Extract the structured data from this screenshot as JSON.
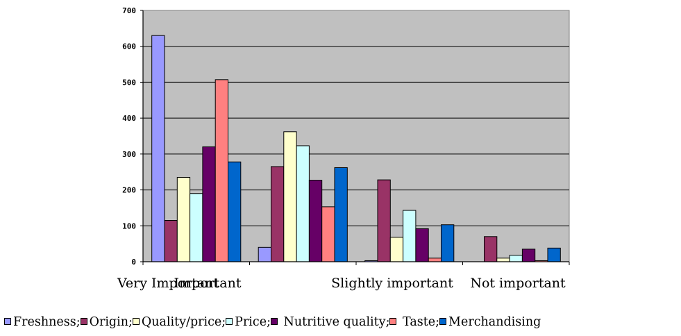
{
  "chart_data": {
    "type": "bar",
    "categories": [
      "Very Important",
      "Important",
      "Slightly important",
      "Not important"
    ],
    "ylim": [
      0,
      700
    ],
    "yticks": [
      0,
      100,
      200,
      300,
      400,
      500,
      600,
      700
    ],
    "grid": true,
    "legend_position": "bottom",
    "series": [
      {
        "name": "Freshness",
        "color": "#9999ff",
        "values": [
          630,
          40,
          3,
          0
        ]
      },
      {
        "name": "Origin",
        "color": "#993366",
        "values": [
          115,
          265,
          228,
          70
        ]
      },
      {
        "name": "Quality/price",
        "color": "#ffffcc",
        "values": [
          235,
          362,
          68,
          10
        ]
      },
      {
        "name": "Price",
        "color": "#ccffff",
        "values": [
          190,
          323,
          143,
          18
        ]
      },
      {
        "name": "Nutritive quality",
        "color": "#660066",
        "values": [
          320,
          227,
          92,
          35
        ]
      },
      {
        "name": "Taste",
        "color": "#ff8080",
        "values": [
          507,
          153,
          10,
          3
        ]
      },
      {
        "name": "Merchandising",
        "color": "#0066cc",
        "values": [
          278,
          262,
          103,
          38
        ]
      }
    ]
  },
  "legend_entries": [
    "Freshness;",
    "Origin;",
    "Quality/price;",
    "Price;",
    " Nutritive quality;",
    " Taste;",
    "Merchandising"
  ]
}
